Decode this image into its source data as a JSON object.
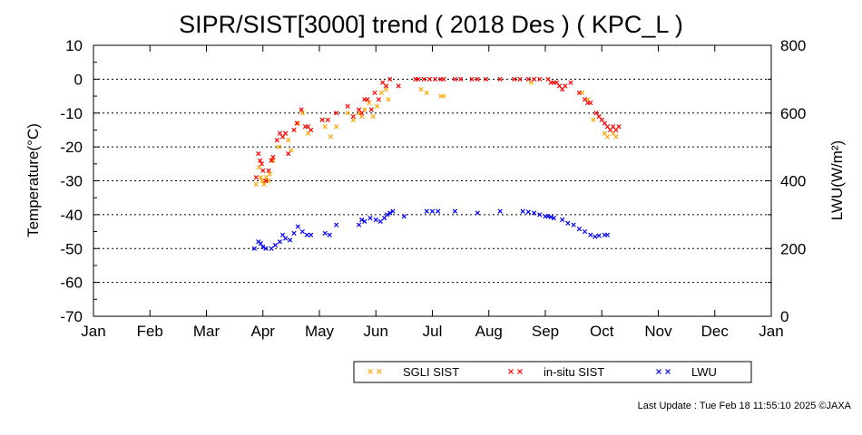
{
  "chart_data": {
    "type": "scatter",
    "title": "SIPR/SIST[3000] trend ( 2018 Des ) ( KPC_L )",
    "ylabel": "Temperature(°C)",
    "y2label": "LWU(W/m²)",
    "ylim": [
      -70,
      10
    ],
    "y2lim": [
      0,
      800
    ],
    "xlim": [
      0,
      12
    ],
    "x_ticks": [
      "Jan",
      "Feb",
      "Mar",
      "Apr",
      "May",
      "Jun",
      "Jul",
      "Aug",
      "Sep",
      "Oct",
      "Nov",
      "Dec",
      "Jan"
    ],
    "y_ticks": [
      10,
      0,
      -10,
      -20,
      -30,
      -40,
      -50,
      -60,
      -70
    ],
    "y2_ticks": [
      800,
      600,
      400,
      200,
      0
    ],
    "grid": "horizontal dotted",
    "legend_position": "bottom-right",
    "series": [
      {
        "name": "SGLI SIST",
        "color": "#ffa500",
        "axis": "left",
        "points": [
          [
            2.88,
            -31
          ],
          [
            2.93,
            -26
          ],
          [
            2.96,
            -29
          ],
          [
            2.99,
            -30
          ],
          [
            3.02,
            -31
          ],
          [
            3.06,
            -29
          ],
          [
            3.1,
            -30
          ],
          [
            3.12,
            -28
          ],
          [
            3.15,
            -24
          ],
          [
            3.18,
            -24
          ],
          [
            3.28,
            -20
          ],
          [
            3.35,
            -17
          ],
          [
            3.4,
            -16
          ],
          [
            3.45,
            -18
          ],
          [
            3.5,
            -21
          ],
          [
            3.55,
            -15
          ],
          [
            3.62,
            -13
          ],
          [
            3.7,
            -10
          ],
          [
            3.8,
            -16
          ],
          [
            3.85,
            -15
          ],
          [
            4.05,
            -12
          ],
          [
            4.1,
            -14
          ],
          [
            4.2,
            -17
          ],
          [
            4.3,
            -14
          ],
          [
            4.5,
            -10
          ],
          [
            4.6,
            -12
          ],
          [
            4.7,
            -10
          ],
          [
            4.75,
            -11
          ],
          [
            4.8,
            -9
          ],
          [
            4.88,
            -7
          ],
          [
            4.95,
            -11
          ],
          [
            5.02,
            -8
          ],
          [
            5.1,
            -4
          ],
          [
            5.18,
            -3
          ],
          [
            5.22,
            -6
          ],
          [
            5.8,
            -3
          ],
          [
            5.9,
            -4
          ],
          [
            6.15,
            -5
          ],
          [
            6.2,
            -5
          ],
          [
            7.75,
            -1
          ],
          [
            8.65,
            -4
          ],
          [
            8.75,
            -6
          ],
          [
            8.85,
            -12
          ],
          [
            8.95,
            -11
          ],
          [
            9.05,
            -16
          ],
          [
            9.1,
            -17
          ],
          [
            9.2,
            -16
          ],
          [
            9.25,
            -17
          ]
        ]
      },
      {
        "name": "in-situ SIST",
        "color": "#ff0000",
        "axis": "left",
        "points": [
          [
            2.88,
            -29
          ],
          [
            2.92,
            -22
          ],
          [
            2.95,
            -24
          ],
          [
            2.98,
            -25
          ],
          [
            3.0,
            -27
          ],
          [
            3.05,
            -30
          ],
          [
            3.1,
            -27
          ],
          [
            3.15,
            -24
          ],
          [
            3.18,
            -23
          ],
          [
            3.25,
            -18
          ],
          [
            3.3,
            -16
          ],
          [
            3.35,
            -17
          ],
          [
            3.4,
            -16
          ],
          [
            3.45,
            -22
          ],
          [
            3.55,
            -15
          ],
          [
            3.6,
            -13
          ],
          [
            3.68,
            -9
          ],
          [
            3.75,
            -14
          ],
          [
            3.8,
            -14
          ],
          [
            3.85,
            -15
          ],
          [
            4.05,
            -12
          ],
          [
            4.15,
            -12
          ],
          [
            4.3,
            -10
          ],
          [
            4.5,
            -8
          ],
          [
            4.6,
            -11
          ],
          [
            4.7,
            -9
          ],
          [
            4.75,
            -10
          ],
          [
            4.8,
            -6
          ],
          [
            4.85,
            -6
          ],
          [
            4.92,
            -9
          ],
          [
            4.98,
            -4
          ],
          [
            5.05,
            -6
          ],
          [
            5.12,
            -1
          ],
          [
            5.18,
            -2
          ],
          [
            5.25,
            0
          ],
          [
            5.4,
            -2
          ],
          [
            5.7,
            0
          ],
          [
            5.75,
            0
          ],
          [
            5.85,
            0
          ],
          [
            5.95,
            0
          ],
          [
            6.05,
            0
          ],
          [
            6.15,
            0
          ],
          [
            6.2,
            0
          ],
          [
            6.4,
            0
          ],
          [
            6.5,
            0
          ],
          [
            6.7,
            0
          ],
          [
            6.8,
            0
          ],
          [
            6.95,
            0
          ],
          [
            7.2,
            0
          ],
          [
            7.45,
            0
          ],
          [
            7.55,
            0
          ],
          [
            7.7,
            0
          ],
          [
            7.8,
            0
          ],
          [
            7.9,
            0
          ],
          [
            8.05,
            0
          ],
          [
            8.1,
            -1
          ],
          [
            8.15,
            -1
          ],
          [
            8.2,
            -1
          ],
          [
            8.25,
            -2
          ],
          [
            8.3,
            -3
          ],
          [
            8.35,
            -2
          ],
          [
            8.45,
            -1
          ],
          [
            8.6,
            -4
          ],
          [
            8.7,
            -6
          ],
          [
            8.75,
            -7
          ],
          [
            8.8,
            -7
          ],
          [
            8.9,
            -10
          ],
          [
            8.95,
            -11
          ],
          [
            9.0,
            -12
          ],
          [
            9.05,
            -13
          ],
          [
            9.1,
            -14
          ],
          [
            9.15,
            -15
          ],
          [
            9.2,
            -14
          ],
          [
            9.25,
            -15
          ],
          [
            9.3,
            -14
          ]
        ]
      },
      {
        "name": "LWU",
        "color": "#0000ff",
        "axis": "right",
        "points": [
          [
            2.85,
            200
          ],
          [
            2.92,
            220
          ],
          [
            2.96,
            215
          ],
          [
            3.0,
            205
          ],
          [
            3.05,
            200
          ],
          [
            3.15,
            200
          ],
          [
            3.22,
            210
          ],
          [
            3.3,
            220
          ],
          [
            3.35,
            240
          ],
          [
            3.4,
            230
          ],
          [
            3.48,
            225
          ],
          [
            3.55,
            245
          ],
          [
            3.62,
            265
          ],
          [
            3.7,
            250
          ],
          [
            3.78,
            240
          ],
          [
            3.85,
            240
          ],
          [
            4.1,
            245
          ],
          [
            4.18,
            240
          ],
          [
            4.3,
            270
          ],
          [
            4.7,
            270
          ],
          [
            4.75,
            285
          ],
          [
            4.8,
            280
          ],
          [
            4.9,
            290
          ],
          [
            5.0,
            285
          ],
          [
            5.08,
            280
          ],
          [
            5.15,
            290
          ],
          [
            5.2,
            300
          ],
          [
            5.25,
            305
          ],
          [
            5.3,
            310
          ],
          [
            5.5,
            295
          ],
          [
            5.9,
            310
          ],
          [
            6.0,
            310
          ],
          [
            6.1,
            310
          ],
          [
            6.4,
            310
          ],
          [
            6.8,
            305
          ],
          [
            7.2,
            310
          ],
          [
            7.6,
            310
          ],
          [
            7.7,
            308
          ],
          [
            7.8,
            305
          ],
          [
            7.9,
            300
          ],
          [
            8.0,
            295
          ],
          [
            8.05,
            295
          ],
          [
            8.1,
            293
          ],
          [
            8.15,
            290
          ],
          [
            8.3,
            285
          ],
          [
            8.4,
            275
          ],
          [
            8.5,
            270
          ],
          [
            8.6,
            258
          ],
          [
            8.7,
            250
          ],
          [
            8.8,
            240
          ],
          [
            8.88,
            235
          ],
          [
            8.95,
            238
          ],
          [
            9.05,
            240
          ],
          [
            9.1,
            240
          ]
        ]
      }
    ]
  },
  "legend": {
    "items": [
      {
        "label": "SGLI SIST",
        "color": "#ffa500"
      },
      {
        "label": "in-situ SIST",
        "color": "#ff0000"
      },
      {
        "label": "LWU",
        "color": "#0000ff"
      }
    ]
  },
  "footer": {
    "last_update": "Last Update : Tue Feb 18 11:55:10 2025  ©JAXA"
  }
}
